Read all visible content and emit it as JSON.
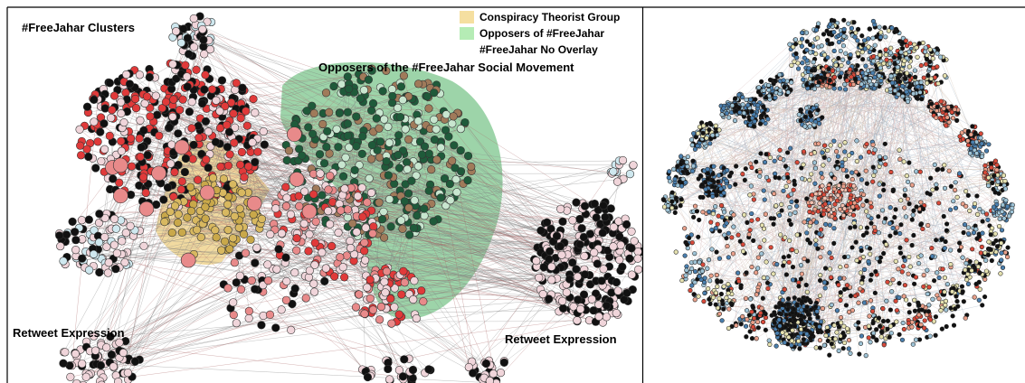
{
  "left_panel": {
    "title": "#FreeJahar Clusters",
    "legend": [
      "Conspiracy Theorist Group",
      "Opposers of #FreeJahar",
      "#FreeJahar No Overlay"
    ],
    "annotations": [
      "Opposers of the #FreeJahar Social Movement",
      "Retweet Expression",
      "Retweet Expression"
    ]
  }
}
